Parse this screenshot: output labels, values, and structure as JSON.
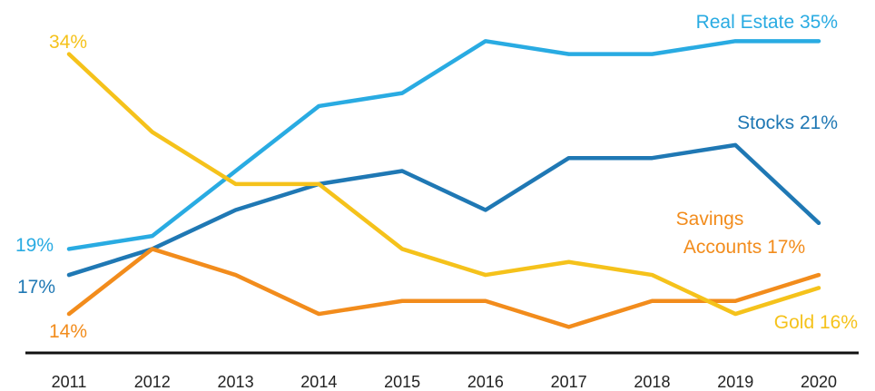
{
  "chart_data": {
    "type": "line",
    "categories": [
      "2011",
      "2012",
      "2013",
      "2014",
      "2015",
      "2016",
      "2017",
      "2018",
      "2019",
      "2020"
    ],
    "ylim": [
      11,
      36
    ],
    "grid": false,
    "legend": "inline labels",
    "series": [
      {
        "name": "Real Estate",
        "color": "#29ABE2",
        "values": [
          19,
          20,
          25,
          30,
          31,
          35,
          34,
          34,
          35,
          35
        ],
        "end_label": "Real Estate 35%",
        "start_label": "19%"
      },
      {
        "name": "Stocks",
        "color": "#1F78B4",
        "values": [
          17,
          19,
          22,
          24,
          25,
          22,
          26,
          26,
          27,
          21
        ],
        "end_label": "Stocks 21%",
        "start_label": "17%"
      },
      {
        "name": "Savings Accounts",
        "color": "#F28C1C",
        "values": [
          14,
          19,
          17,
          14,
          15,
          15,
          13,
          15,
          15,
          17
        ],
        "end_label_lines": [
          "Savings",
          "Accounts 17%"
        ],
        "start_label": "14%"
      },
      {
        "name": "Gold",
        "color": "#F5C21B",
        "values": [
          34,
          28,
          24,
          24,
          19,
          17,
          18,
          17,
          14,
          16
        ],
        "end_label": "Gold 16%",
        "start_label": "34%"
      }
    ]
  }
}
